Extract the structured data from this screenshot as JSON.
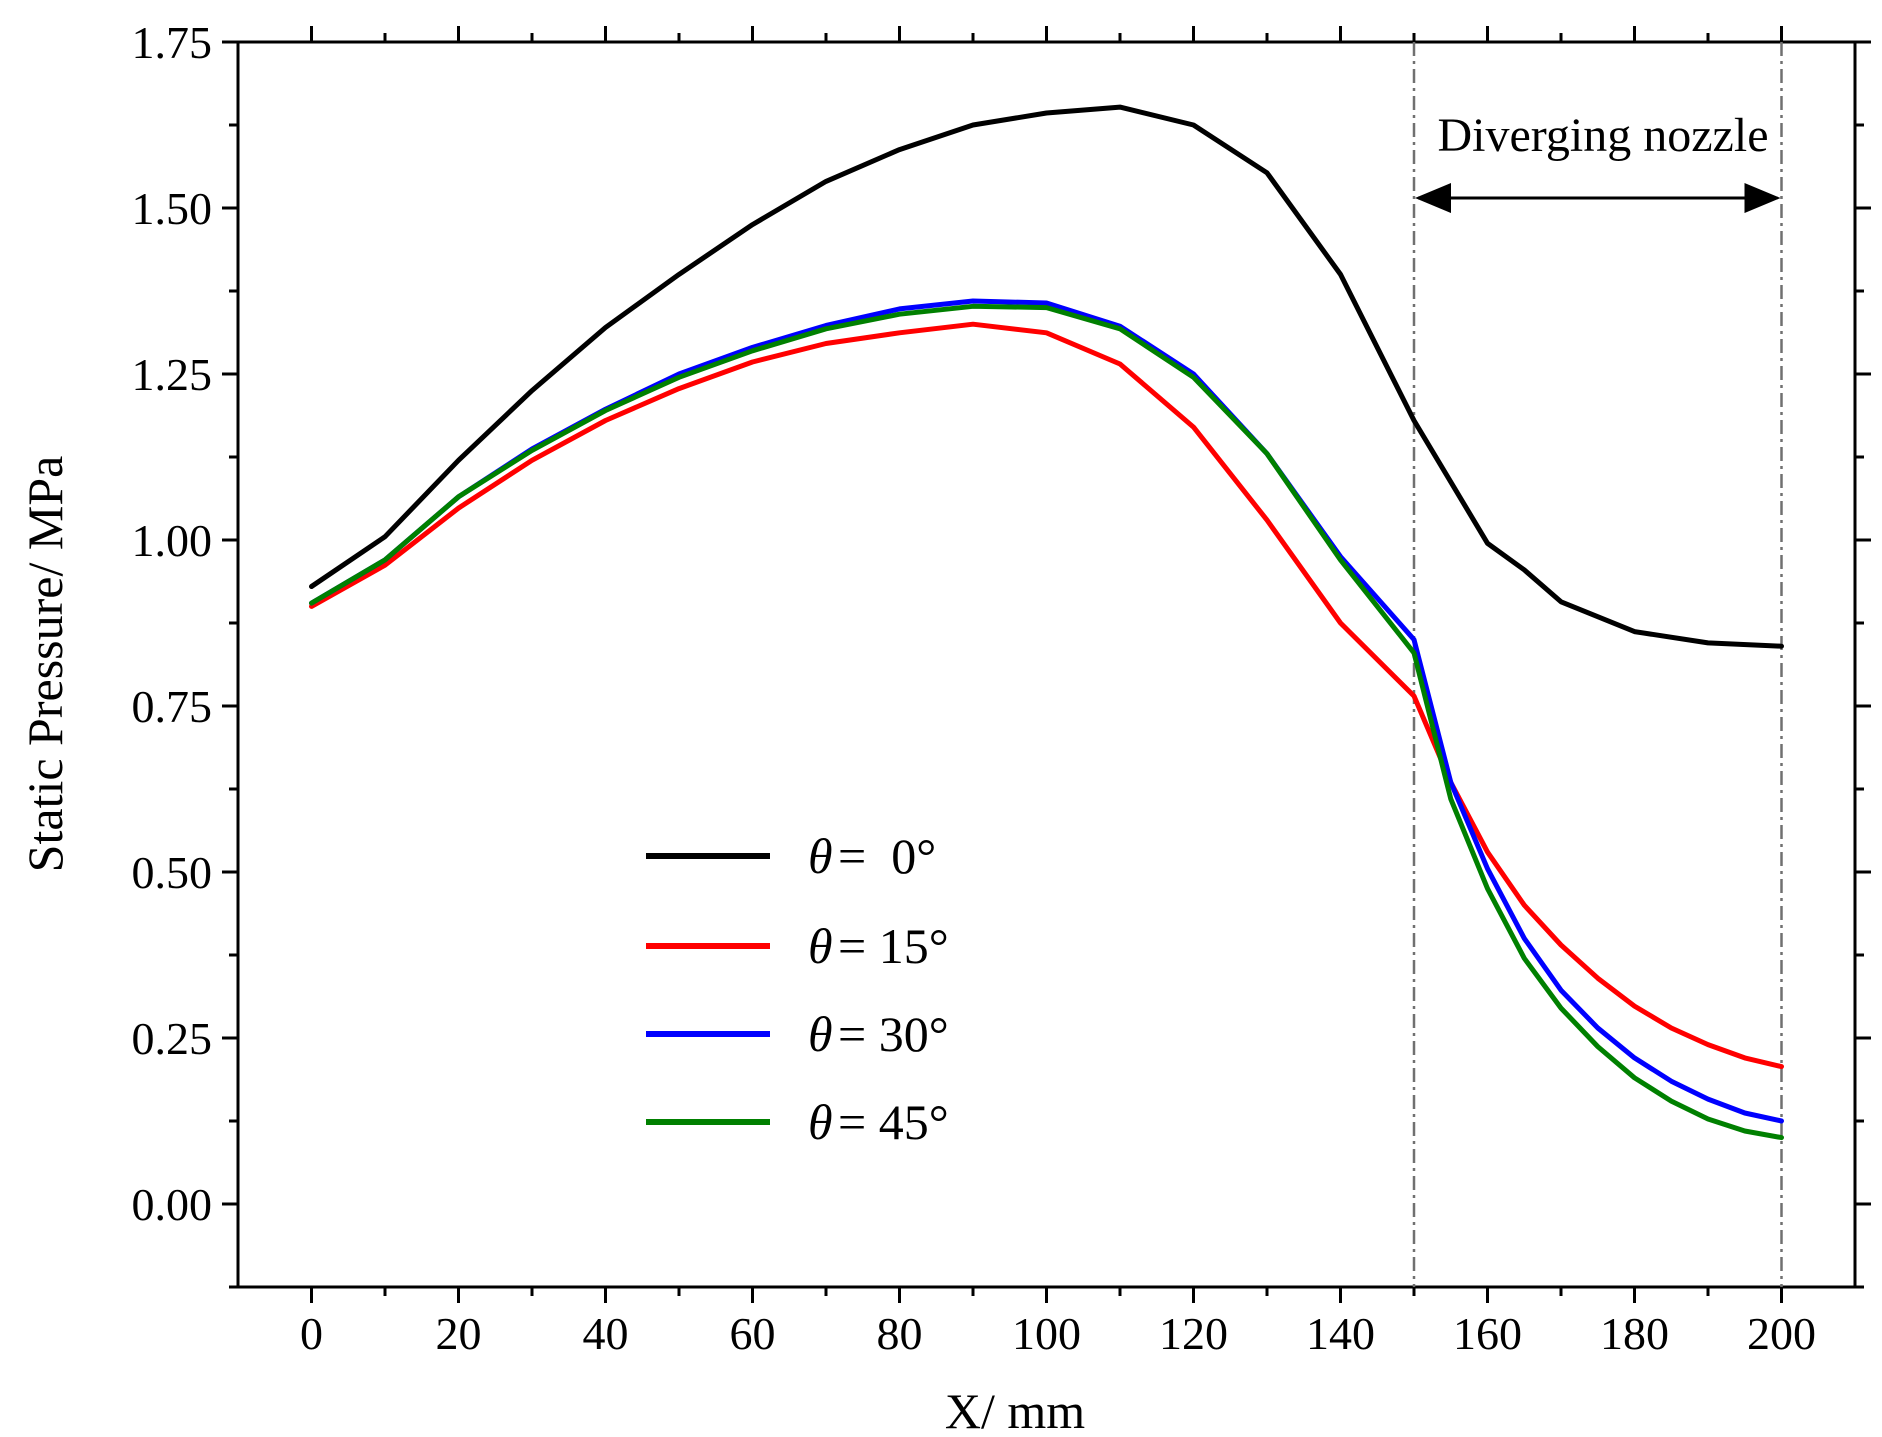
{
  "chart_data": {
    "type": "line",
    "xlabel": "X/ mm",
    "ylabel": "Static Pressure/ MPa",
    "xlim": [
      -10,
      210
    ],
    "ylim": [
      -0.125,
      1.75
    ],
    "xticks": [
      0,
      20,
      40,
      60,
      80,
      100,
      120,
      140,
      160,
      180,
      200
    ],
    "xtick_labels": [
      "0",
      "20",
      "40",
      "60",
      "80",
      "100",
      "120",
      "140",
      "160",
      "180",
      "200"
    ],
    "yticks": [
      0,
      0.25,
      0.5,
      0.75,
      1.0,
      1.25,
      1.5,
      1.75
    ],
    "ytick_labels": [
      "0.00",
      "0.25",
      "0.50",
      "0.75",
      "1.00",
      "1.25",
      "1.50",
      "1.75"
    ],
    "grid": false,
    "legend_position": "bottom-center-left",
    "series": [
      {
        "name": "θ = 0°",
        "legend_symbol": "θ",
        "legend_value": "=  0°",
        "color": "#000000",
        "x": [
          0,
          10,
          20,
          30,
          40,
          50,
          60,
          70,
          80,
          90,
          100,
          110,
          120,
          130,
          140,
          150,
          160,
          165,
          170,
          180,
          190,
          200
        ],
        "y": [
          0.93,
          1.005,
          1.12,
          1.225,
          1.32,
          1.4,
          1.475,
          1.54,
          1.588,
          1.625,
          1.643,
          1.652,
          1.625,
          1.553,
          1.4,
          1.18,
          0.995,
          0.955,
          0.907,
          0.862,
          0.845,
          0.84
        ]
      },
      {
        "name": "θ = 15°",
        "legend_symbol": "θ",
        "legend_value": "= 15°",
        "color": "#ff0000",
        "x": [
          0,
          10,
          20,
          30,
          40,
          50,
          60,
          70,
          80,
          90,
          100,
          110,
          120,
          130,
          140,
          150,
          155,
          160,
          165,
          170,
          175,
          180,
          185,
          190,
          195,
          200
        ],
        "y": [
          0.9,
          0.962,
          1.048,
          1.12,
          1.18,
          1.228,
          1.268,
          1.296,
          1.312,
          1.325,
          1.312,
          1.265,
          1.17,
          1.03,
          0.875,
          0.765,
          0.635,
          0.53,
          0.45,
          0.39,
          0.34,
          0.298,
          0.265,
          0.24,
          0.22,
          0.207
        ]
      },
      {
        "name": "θ = 30°",
        "legend_symbol": "θ",
        "legend_value": "= 30°",
        "color": "#0000ff",
        "x": [
          0,
          10,
          20,
          30,
          40,
          50,
          60,
          70,
          80,
          90,
          100,
          110,
          120,
          130,
          140,
          150,
          155,
          160,
          165,
          170,
          175,
          180,
          185,
          190,
          195,
          200
        ],
        "y": [
          0.905,
          0.97,
          1.065,
          1.137,
          1.197,
          1.25,
          1.29,
          1.323,
          1.348,
          1.36,
          1.357,
          1.322,
          1.25,
          1.13,
          0.975,
          0.85,
          0.635,
          0.505,
          0.4,
          0.322,
          0.265,
          0.22,
          0.185,
          0.158,
          0.137,
          0.125
        ]
      },
      {
        "name": "θ = 45°",
        "legend_symbol": "θ",
        "legend_value": "= 45°",
        "color": "#008000",
        "x": [
          0,
          10,
          20,
          30,
          40,
          50,
          60,
          70,
          80,
          90,
          100,
          110,
          120,
          130,
          140,
          150,
          155,
          160,
          165,
          170,
          175,
          180,
          185,
          190,
          195,
          200
        ],
        "y": [
          0.905,
          0.97,
          1.065,
          1.135,
          1.195,
          1.245,
          1.285,
          1.318,
          1.34,
          1.352,
          1.35,
          1.318,
          1.245,
          1.13,
          0.97,
          0.83,
          0.61,
          0.475,
          0.37,
          0.295,
          0.237,
          0.19,
          0.155,
          0.128,
          0.11,
          0.1
        ]
      }
    ],
    "vertical_reference_lines": [
      150,
      200
    ],
    "annotations": [
      {
        "text": "Diverging nozzle",
        "arrow_from": 150,
        "arrow_to": 200,
        "arrow_y": 1.515,
        "kind": "double-arrow"
      }
    ]
  }
}
